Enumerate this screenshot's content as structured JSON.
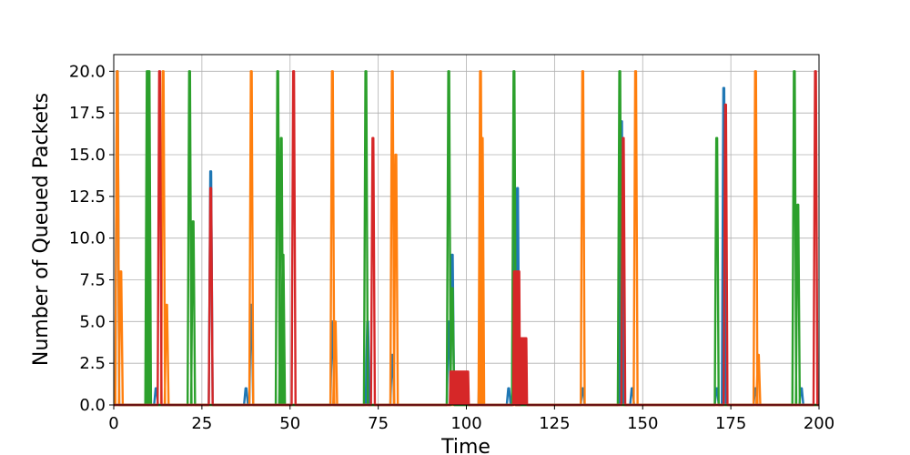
{
  "chart_data": {
    "type": "line",
    "title": "",
    "xlabel": "Time",
    "ylabel": "Number of Queued Packets",
    "xlim": [
      0,
      200
    ],
    "ylim": [
      0,
      21
    ],
    "xticks": [
      0,
      25,
      50,
      75,
      100,
      125,
      150,
      175,
      200
    ],
    "yticks": [
      0.0,
      2.5,
      5.0,
      7.5,
      10.0,
      12.5,
      15.0,
      17.5,
      20.0
    ],
    "grid": true,
    "legend": "none",
    "colors": [
      "#1f77b4",
      "#ff7f0e",
      "#2ca02c",
      "#d62728"
    ],
    "series": [
      {
        "color": "#1f77b4",
        "peaks": [
          [
            1.0,
            20
          ],
          [
            12.0,
            1
          ],
          [
            27.5,
            14
          ],
          [
            37.5,
            1
          ],
          [
            39.0,
            6
          ],
          [
            47.5,
            5
          ],
          [
            62.0,
            5
          ],
          [
            72.0,
            5
          ],
          [
            79.0,
            3
          ],
          [
            95.0,
            5
          ],
          [
            96.0,
            9
          ],
          [
            104.0,
            5
          ],
          [
            112.0,
            1
          ],
          [
            113.5,
            14
          ],
          [
            114.5,
            13
          ],
          [
            133.0,
            1
          ],
          [
            144.0,
            17
          ],
          [
            147.0,
            1
          ],
          [
            171.0,
            1
          ],
          [
            173.0,
            19
          ],
          [
            182.0,
            1
          ],
          [
            195.0,
            1
          ]
        ]
      },
      {
        "color": "#ff7f0e",
        "peaks": [
          [
            1.0,
            20
          ],
          [
            2.0,
            8
          ],
          [
            14.0,
            20
          ],
          [
            15.0,
            6
          ],
          [
            39.0,
            20
          ],
          [
            62.0,
            20
          ],
          [
            62.8,
            5
          ],
          [
            79.0,
            20
          ],
          [
            80.0,
            15
          ],
          [
            104.0,
            20
          ],
          [
            104.5,
            16
          ],
          [
            133.0,
            20
          ],
          [
            148.0,
            20
          ],
          [
            182.0,
            20
          ],
          [
            182.8,
            3
          ]
        ]
      },
      {
        "color": "#2ca02c",
        "peaks": [
          [
            9.5,
            20
          ],
          [
            10.0,
            20
          ],
          [
            21.5,
            20
          ],
          [
            22.5,
            11
          ],
          [
            46.5,
            20
          ],
          [
            47.5,
            16
          ],
          [
            48.0,
            9
          ],
          [
            71.5,
            20
          ],
          [
            95.0,
            20
          ],
          [
            96.0,
            7
          ],
          [
            113.5,
            20
          ],
          [
            143.5,
            20
          ],
          [
            171.0,
            16
          ],
          [
            193.0,
            20
          ],
          [
            194.0,
            12
          ]
        ]
      },
      {
        "color": "#d62728",
        "peaks": [
          [
            13.0,
            20
          ],
          [
            27.5,
            13
          ],
          [
            51.0,
            20
          ],
          [
            73.5,
            16
          ],
          [
            114.5,
            8
          ],
          [
            144.5,
            16
          ],
          [
            173.5,
            18
          ],
          [
            199.0,
            20
          ]
        ],
        "plateaus": [
          [
            95.5,
            100.5,
            2
          ],
          [
            113.5,
            115.0,
            8
          ],
          [
            115.0,
            117.0,
            4
          ]
        ]
      }
    ]
  }
}
